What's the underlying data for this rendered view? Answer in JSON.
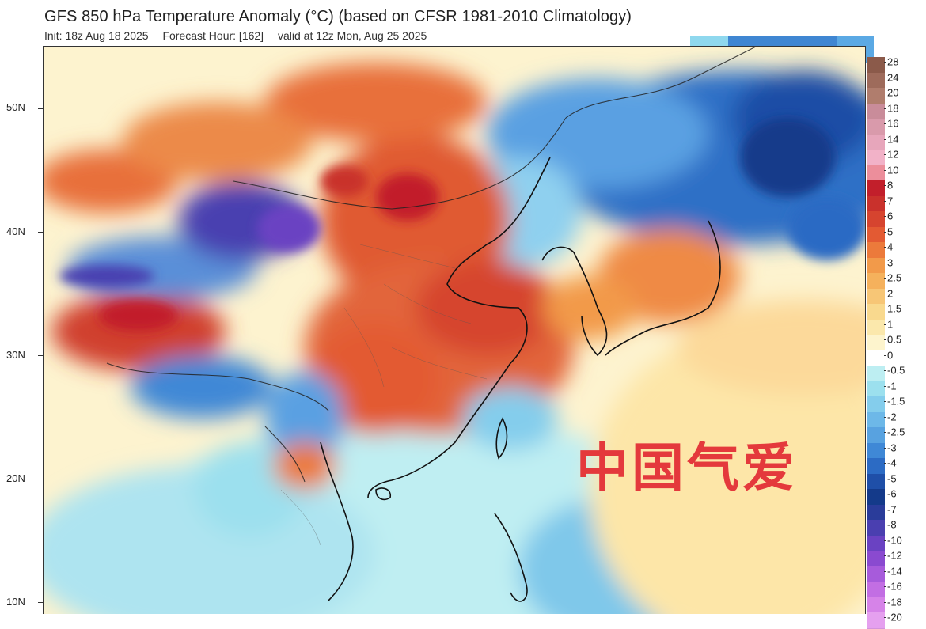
{
  "header": {
    "title": "GFS 850 hPa Temperature Anomaly (°C) (based on CFSR 1981-2010 Climatology)",
    "init": "Init: 18z Aug 18 2025",
    "forecast_hour": "Forecast Hour: [162]",
    "valid": "valid at 12z Mon, Aug 25 2025"
  },
  "map": {
    "latitude_labels": [
      "50N",
      "40N",
      "30N",
      "20N",
      "10N"
    ],
    "colors": {
      "frame": "#333333",
      "coast": "#111111",
      "border": "#222222"
    }
  },
  "colorbar": {
    "labels": [
      "28",
      "24",
      "20",
      "18",
      "16",
      "14",
      "12",
      "10",
      "8",
      "7",
      "6",
      "5",
      "4",
      "3",
      "2.5",
      "2",
      "1.5",
      "1",
      "0.5",
      "0",
      "-0.5",
      "-1",
      "-1.5",
      "-2",
      "-2.5",
      "-3",
      "-4",
      "-5",
      "-6",
      "-7",
      "-8",
      "-10",
      "-12",
      "-14",
      "-16",
      "-18",
      "-20"
    ],
    "colors": [
      "#8b5a4a",
      "#9e6b5b",
      "#b07d6d",
      "#c98c9a",
      "#d99aab",
      "#e7a6bb",
      "#f2b2c8",
      "#ec8e9b",
      "#c21f2b",
      "#c9312c",
      "#d6442f",
      "#e35a33",
      "#ec7a3b",
      "#f29a4a",
      "#f5b15c",
      "#f7c676",
      "#f9d98e",
      "#fbe8ac",
      "#fdf4cd",
      "#ffffff",
      "#bdeef2",
      "#9ce0ee",
      "#84cdec",
      "#6db8e8",
      "#58a2e0",
      "#3f88d6",
      "#2c6bc4",
      "#1f4fa8",
      "#143a8a",
      "#2a3c9a",
      "#4a3fb0",
      "#6a42c2",
      "#8a4ad0",
      "#a75bdb",
      "#c26ee3",
      "#d683e8",
      "#e5a0ef"
    ]
  },
  "watermark": {
    "text": "中国气爱"
  }
}
